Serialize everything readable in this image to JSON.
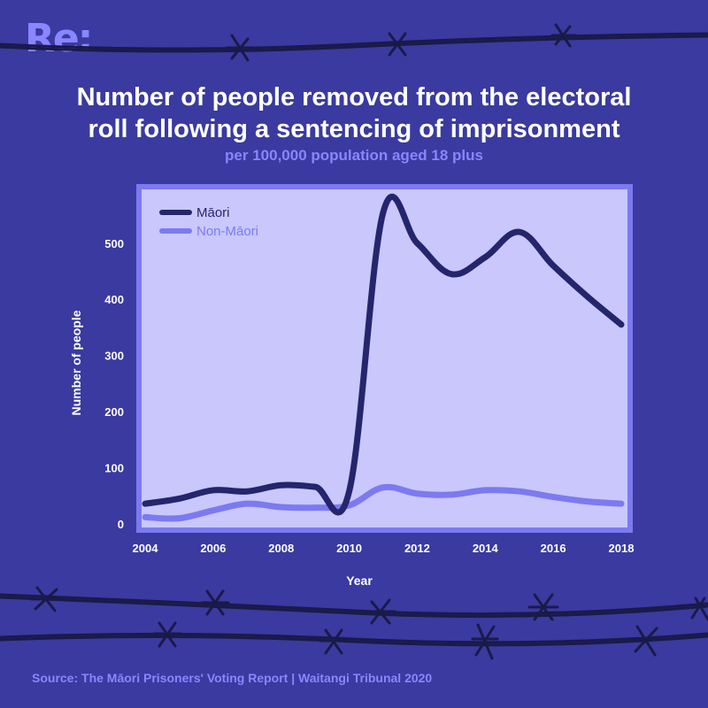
{
  "brand": {
    "logo_text": "Re:"
  },
  "header": {
    "title_line1": "Number of people removed from the electoral",
    "title_line2": "roll following a sentencing of imprisonment",
    "subtitle": "per 100,000 population aged 18 plus"
  },
  "source": "Source: The Māori Prisoners' Voting Report | Waitangi Tribunal 2020",
  "colors": {
    "background": "#3a3aa0",
    "plot_area": "#c9c7fb",
    "frame": "#7c7af0",
    "maori_line": "#25256e",
    "non_maori_line": "#7c7af0",
    "accent_text": "#8a86ff",
    "barbed_wire": "#1a1a4a"
  },
  "chart_data": {
    "type": "line",
    "title": "Number of people removed from the electoral roll following a sentencing of imprisonment",
    "subtitle": "per 100,000 population aged 18 plus",
    "xlabel": "Year",
    "ylabel": "Number of people",
    "xlim": [
      2004,
      2018
    ],
    "ylim": [
      0,
      580
    ],
    "x_ticks": [
      2004,
      2006,
      2008,
      2010,
      2012,
      2014,
      2016,
      2018
    ],
    "y_ticks": [
      0,
      100,
      200,
      300,
      400,
      500
    ],
    "grid": false,
    "legend_position": "top-left",
    "series": [
      {
        "name": "Māori",
        "color": "#25256e",
        "x": [
          2004,
          2005,
          2006,
          2007,
          2008,
          2009,
          2010,
          2011,
          2012,
          2013,
          2014,
          2015,
          2016,
          2017,
          2018
        ],
        "values": [
          36,
          45,
          60,
          58,
          69,
          66,
          58,
          555,
          500,
          445,
          475,
          520,
          460,
          405,
          355
        ]
      },
      {
        "name": "Non-Māori",
        "color": "#7c7af0",
        "x": [
          2004,
          2005,
          2006,
          2007,
          2008,
          2009,
          2010,
          2011,
          2012,
          2013,
          2014,
          2015,
          2016,
          2017,
          2018
        ],
        "values": [
          12,
          10,
          24,
          36,
          30,
          29,
          33,
          65,
          54,
          52,
          60,
          58,
          48,
          40,
          36
        ]
      }
    ]
  }
}
